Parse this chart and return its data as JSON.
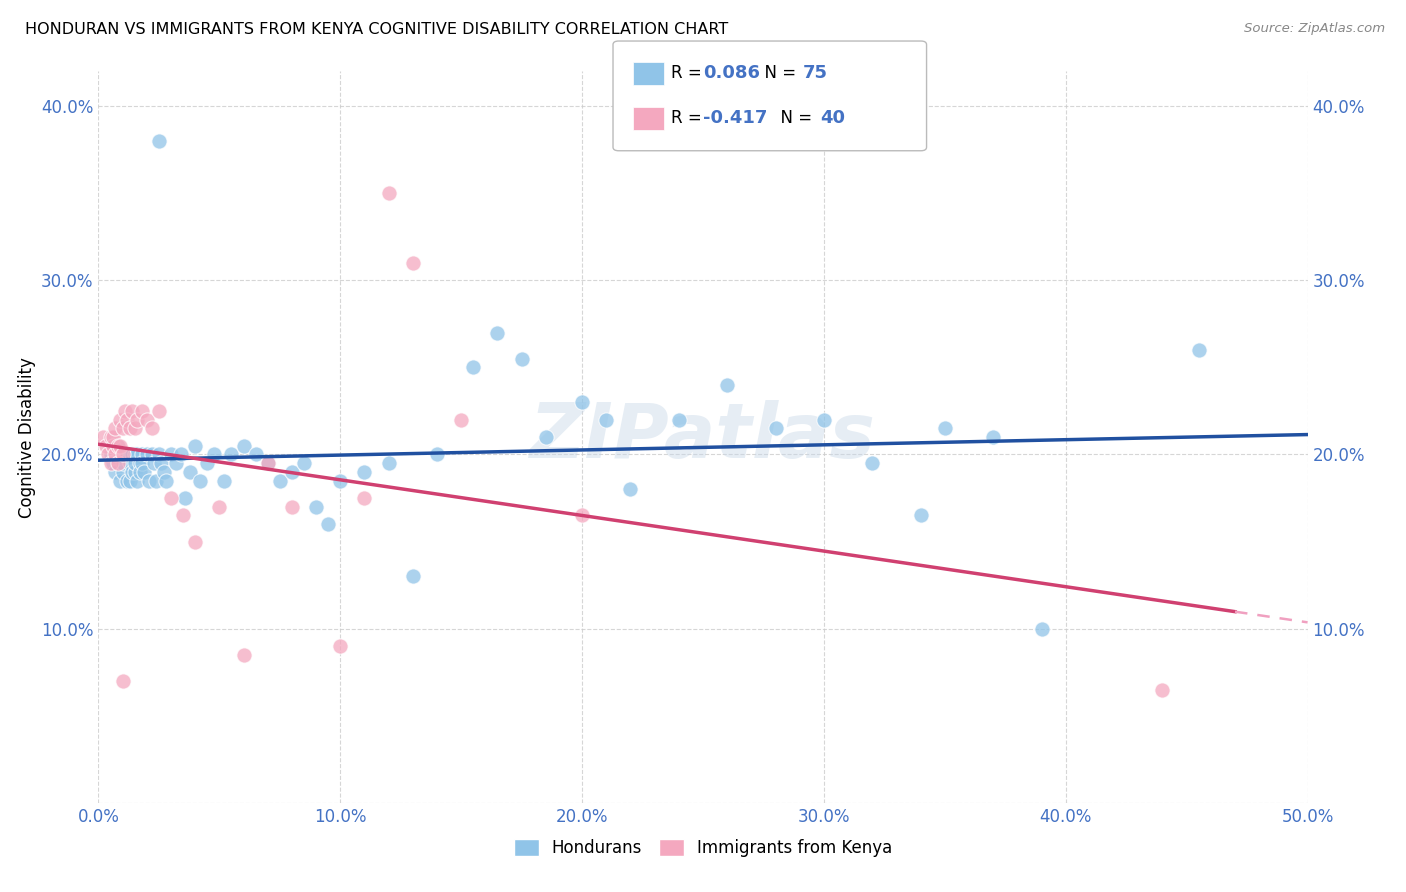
{
  "title": "HONDURAN VS IMMIGRANTS FROM KENYA COGNITIVE DISABILITY CORRELATION CHART",
  "source": "Source: ZipAtlas.com",
  "ylabel": "Cognitive Disability",
  "xlim": [
    0.0,
    0.5
  ],
  "ylim": [
    0.0,
    0.42
  ],
  "xticks": [
    0.0,
    0.1,
    0.2,
    0.3,
    0.4,
    0.5
  ],
  "yticks": [
    0.0,
    0.1,
    0.2,
    0.3,
    0.4
  ],
  "xticklabels": [
    "0.0%",
    "10.0%",
    "20.0%",
    "30.0%",
    "40.0%",
    "50.0%"
  ],
  "yticklabels": [
    "",
    "10.0%",
    "20.0%",
    "30.0%",
    "40.0%"
  ],
  "watermark": "ZIPatlas",
  "legend_label1": "Hondurans",
  "legend_label2": "Immigrants from Kenya",
  "color_blue": "#90c4e8",
  "color_pink": "#f4a8bf",
  "trendline1_color": "#2050a0",
  "trendline2_color": "#d04070",
  "trendline2_dashed_color": "#f0a0c0",
  "blue_x": [
    0.005,
    0.006,
    0.007,
    0.008,
    0.009,
    0.01,
    0.01,
    0.011,
    0.012,
    0.012,
    0.013,
    0.013,
    0.014,
    0.014,
    0.015,
    0.015,
    0.015,
    0.016,
    0.016,
    0.017,
    0.017,
    0.018,
    0.018,
    0.019,
    0.02,
    0.021,
    0.022,
    0.023,
    0.024,
    0.025,
    0.026,
    0.027,
    0.028,
    0.03,
    0.032,
    0.034,
    0.036,
    0.038,
    0.04,
    0.042,
    0.045,
    0.048,
    0.052,
    0.055,
    0.06,
    0.065,
    0.07,
    0.075,
    0.08,
    0.085,
    0.09,
    0.095,
    0.1,
    0.11,
    0.12,
    0.13,
    0.14,
    0.155,
    0.165,
    0.175,
    0.185,
    0.2,
    0.21,
    0.22,
    0.24,
    0.26,
    0.28,
    0.3,
    0.32,
    0.34,
    0.35,
    0.37,
    0.39,
    0.455,
    0.025
  ],
  "blue_y": [
    0.2,
    0.195,
    0.19,
    0.205,
    0.185,
    0.19,
    0.195,
    0.2,
    0.185,
    0.2,
    0.195,
    0.185,
    0.2,
    0.19,
    0.2,
    0.19,
    0.195,
    0.2,
    0.185,
    0.195,
    0.19,
    0.2,
    0.195,
    0.19,
    0.2,
    0.185,
    0.2,
    0.195,
    0.185,
    0.2,
    0.195,
    0.19,
    0.185,
    0.2,
    0.195,
    0.2,
    0.175,
    0.19,
    0.205,
    0.185,
    0.195,
    0.2,
    0.185,
    0.2,
    0.205,
    0.2,
    0.195,
    0.185,
    0.19,
    0.195,
    0.17,
    0.16,
    0.185,
    0.19,
    0.195,
    0.13,
    0.2,
    0.25,
    0.27,
    0.255,
    0.21,
    0.23,
    0.22,
    0.18,
    0.22,
    0.24,
    0.215,
    0.22,
    0.195,
    0.165,
    0.215,
    0.21,
    0.1,
    0.26,
    0.38
  ],
  "pink_x": [
    0.002,
    0.003,
    0.004,
    0.005,
    0.005,
    0.006,
    0.006,
    0.007,
    0.007,
    0.008,
    0.008,
    0.009,
    0.009,
    0.01,
    0.01,
    0.011,
    0.012,
    0.013,
    0.014,
    0.015,
    0.016,
    0.018,
    0.02,
    0.022,
    0.025,
    0.03,
    0.035,
    0.04,
    0.05,
    0.06,
    0.07,
    0.08,
    0.1,
    0.11,
    0.12,
    0.13,
    0.15,
    0.2,
    0.44,
    0.01
  ],
  "pink_y": [
    0.21,
    0.205,
    0.2,
    0.21,
    0.195,
    0.205,
    0.21,
    0.2,
    0.215,
    0.205,
    0.195,
    0.205,
    0.22,
    0.2,
    0.215,
    0.225,
    0.22,
    0.215,
    0.225,
    0.215,
    0.22,
    0.225,
    0.22,
    0.215,
    0.225,
    0.175,
    0.165,
    0.15,
    0.17,
    0.085,
    0.195,
    0.17,
    0.09,
    0.175,
    0.35,
    0.31,
    0.22,
    0.165,
    0.065,
    0.07
  ],
  "trendline_solid_end": 0.47,
  "R1": "0.086",
  "N1": "75",
  "R2": "-0.417",
  "N2": "40"
}
